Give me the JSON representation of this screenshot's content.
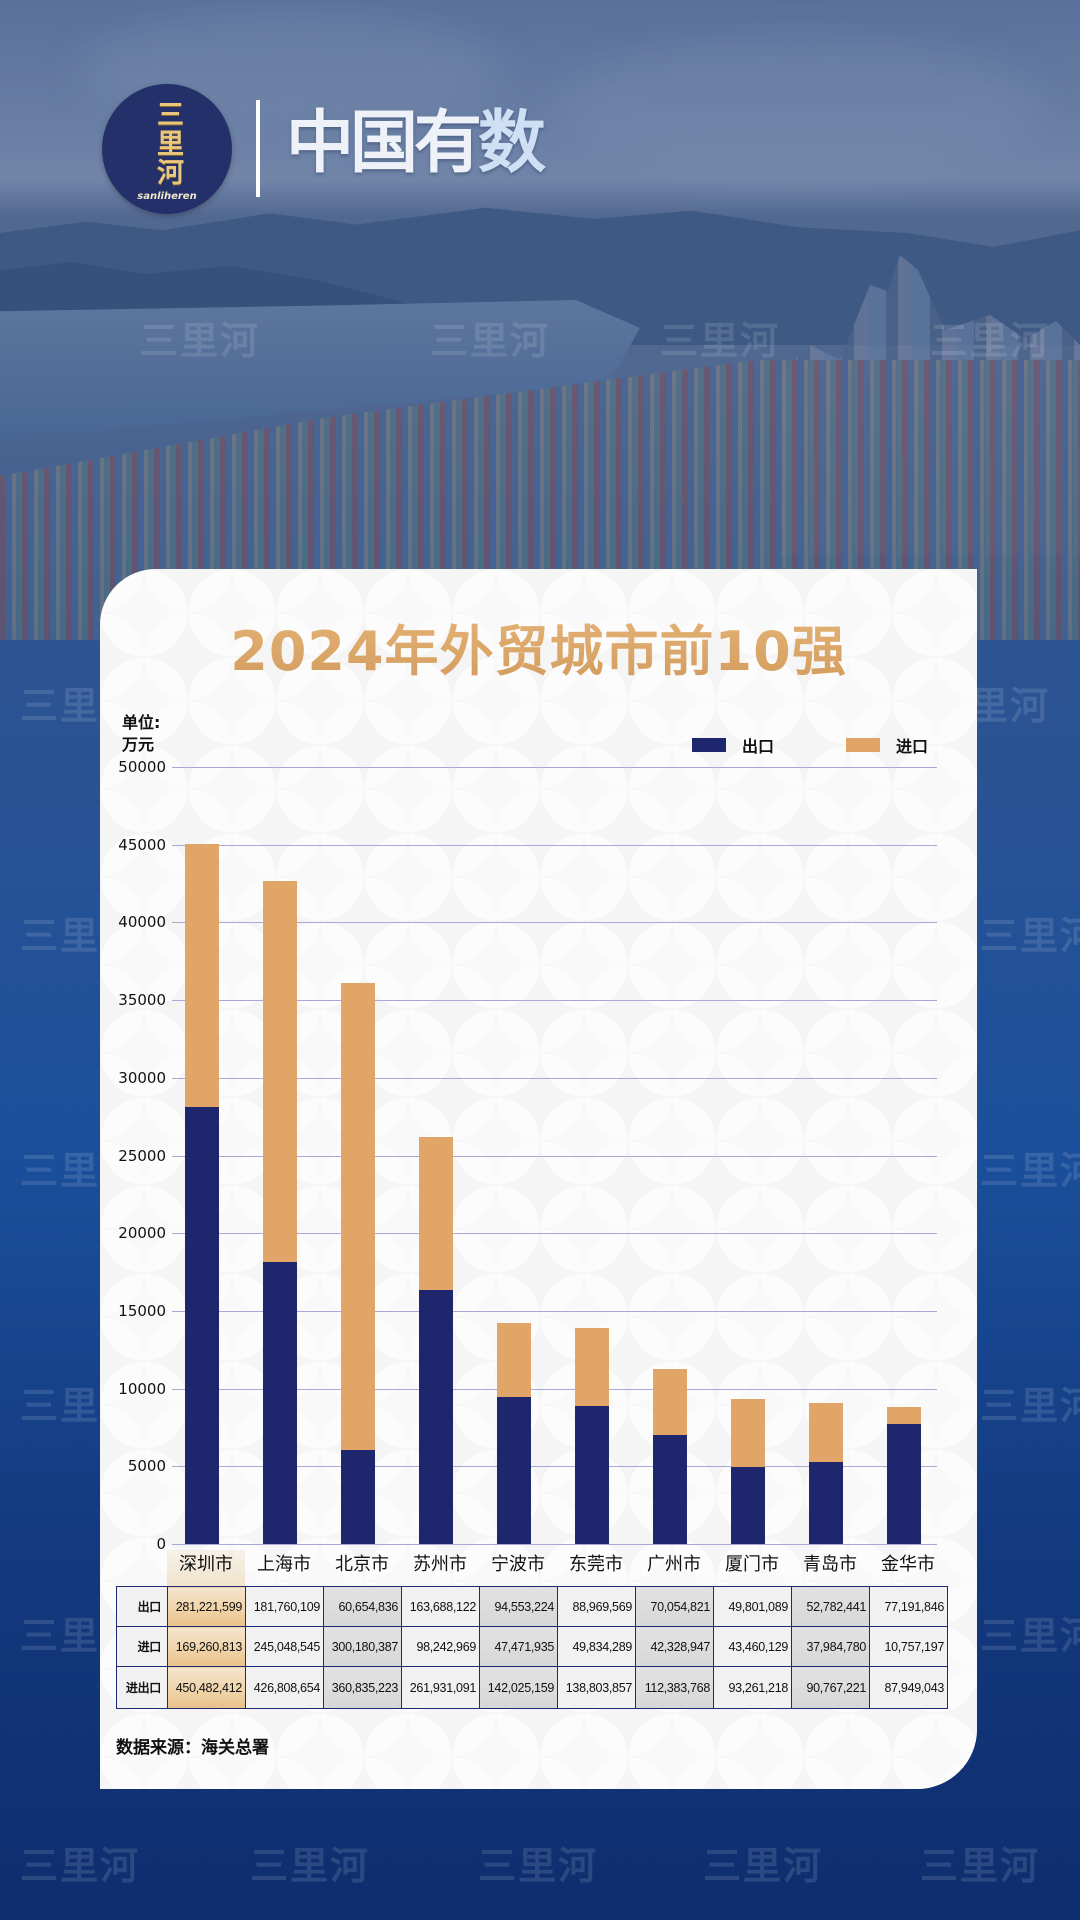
{
  "header": {
    "logo_chars": "三里河",
    "logo_sub": "sanliheren",
    "brand_title_main": "中国有",
    "brand_title_last": "数"
  },
  "watermark": "三里河",
  "card": {
    "title": "2024年外贸城市前10强",
    "unit_line1": "单位:",
    "unit_line2": "万元",
    "legend": [
      {
        "label": "出口",
        "color": "#1e266e"
      },
      {
        "label": "进口",
        "color": "#e2a568"
      }
    ],
    "source": "数据来源：海关总署"
  },
  "colors": {
    "export": "#1e266e",
    "import": "#e2a568",
    "gridline": "#a7aad6",
    "title_gold": "#dca56a",
    "table_border": "#1f2a72"
  },
  "chart_data": {
    "type": "bar",
    "stacked": true,
    "title": "2024年外贸城市前10强",
    "xlabel": "",
    "ylabel": "单位: 万元",
    "ylim": [
      0,
      50000
    ],
    "yticks": [
      0,
      5000,
      10000,
      15000,
      20000,
      25000,
      30000,
      35000,
      40000,
      45000,
      50000
    ],
    "grid": true,
    "legend_position": "top-right",
    "categories": [
      "深圳市",
      "上海市",
      "北京市",
      "苏州市",
      "宁波市",
      "东莞市",
      "广州市",
      "厦门市",
      "青岛市",
      "金华市"
    ],
    "series": [
      {
        "name": "出口",
        "color": "#1e266e",
        "values": [
          28122,
          18176,
          6065,
          16369,
          9455,
          8897,
          7005,
          4980,
          5278,
          7719
        ]
      },
      {
        "name": "进口",
        "color": "#e2a568",
        "values": [
          16926,
          24505,
          30018,
          9824,
          4747,
          4983,
          4233,
          4346,
          3798,
          1076
        ]
      }
    ]
  },
  "table": {
    "row_headers": [
      "出口",
      "进口",
      "进出口"
    ],
    "columns": [
      {
        "city": "深圳市",
        "export": "281,221,599",
        "import": "169,260,813",
        "total": "450,482,412",
        "style": "hl"
      },
      {
        "city": "上海市",
        "export": "181,760,109",
        "import": "245,048,545",
        "total": "426,808,654",
        "style": "light"
      },
      {
        "city": "北京市",
        "export": "60,654,836",
        "import": "300,180,387",
        "total": "360,835,223",
        "style": "grey"
      },
      {
        "city": "苏州市",
        "export": "163,688,122",
        "import": "98,242,969",
        "total": "261,931,091",
        "style": "light"
      },
      {
        "city": "宁波市",
        "export": "94,553,224",
        "import": "47,471,935",
        "total": "142,025,159",
        "style": "grey"
      },
      {
        "city": "东莞市",
        "export": "88,969,569",
        "import": "49,834,289",
        "total": "138,803,857",
        "style": "light"
      },
      {
        "city": "广州市",
        "export": "70,054,821",
        "import": "42,328,947",
        "total": "112,383,768",
        "style": "grey"
      },
      {
        "city": "厦门市",
        "export": "49,801,089",
        "import": "43,460,129",
        "total": "93,261,218",
        "style": "light"
      },
      {
        "city": "青岛市",
        "export": "52,782,441",
        "import": "37,984,780",
        "total": "90,767,221",
        "style": "grey"
      },
      {
        "city": "金华市",
        "export": "77,191,846",
        "import": "10,757,197",
        "total": "87,949,043",
        "style": "light"
      }
    ]
  }
}
